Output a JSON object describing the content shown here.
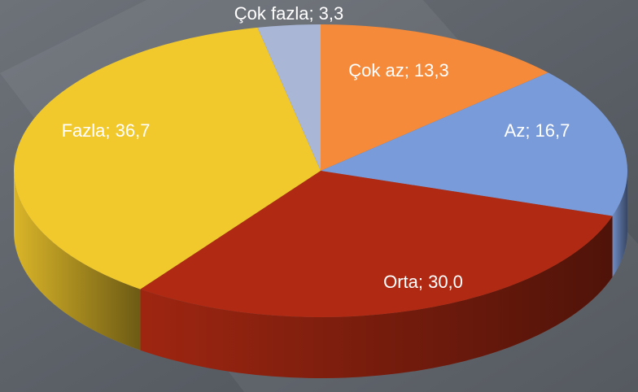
{
  "chart_data": {
    "type": "pie",
    "values": [
      13.3,
      16.7,
      30.0,
      36.7,
      3.3
    ],
    "value_labels": [
      "Çok az; 13,3",
      "Az; 16,7",
      "Orta; 30,0",
      "Fazla; 36,7",
      "Çok fazla; 3,3"
    ],
    "colors": [
      "#f58a3a",
      "#7a9bd9",
      "#b02a13",
      "#f2c92d",
      "#a9b6d6"
    ]
  }
}
